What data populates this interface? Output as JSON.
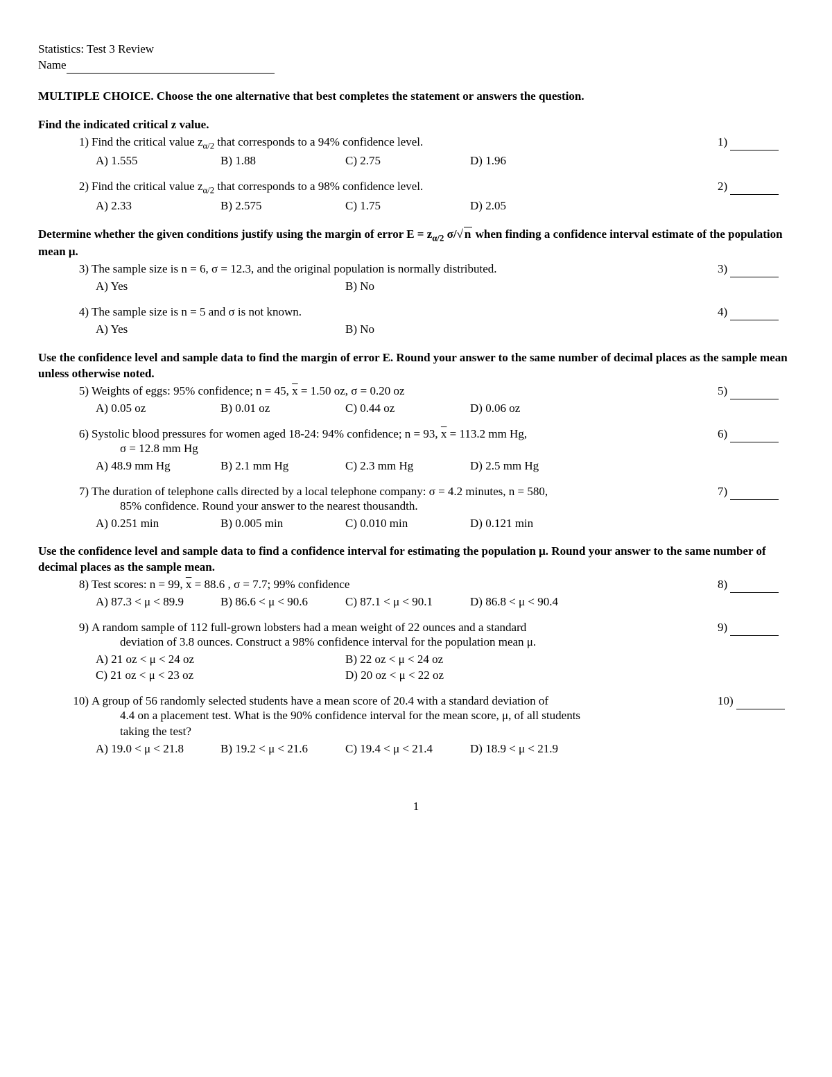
{
  "header": {
    "title": "Statistics:  Test 3 Review",
    "name_label": "Name"
  },
  "instructions": "MULTIPLE CHOICE.  Choose the one alternative that best completes the statement or answers the question.",
  "sections": [
    {
      "head": "Find the indicated critical z value.",
      "questions": [
        {
          "num": "1)",
          "text_pre": "Find the critical value z",
          "text_sub": "α/2",
          "text_post": " that corresponds to a 94% confidence level.",
          "ans_num": "1)",
          "choices": {
            "A": "1.555",
            "B": "1.88",
            "C": "2.75",
            "D": "1.96"
          }
        },
        {
          "num": "2)",
          "text_pre": "Find the critical value z",
          "text_sub": "α/2",
          "text_post": " that corresponds to a 98% confidence level.",
          "ans_num": "2)",
          "choices": {
            "A": "2.33",
            "B": "2.575",
            "C": "1.75",
            "D": "2.05"
          }
        }
      ]
    },
    {
      "head_parts": {
        "pre": "Determine whether the given conditions justify using the margin of error E = z",
        "sub": "α/2",
        "mid": " σ/",
        "sqrt": "n",
        "post": " when finding a confidence interval estimate of the population mean μ."
      },
      "questions": [
        {
          "num": "3)",
          "text": "The sample size is n = 6, σ = 12.3, and the original population is normally distributed.",
          "ans_num": "3)",
          "choices_yn": {
            "A": "Yes",
            "B": "No"
          }
        },
        {
          "num": "4)",
          "text": "The sample size is n = 5 and σ is not known.",
          "ans_num": "4)",
          "choices_yn": {
            "A": "Yes",
            "B": "No"
          }
        }
      ]
    },
    {
      "head": "Use the confidence level and sample data to find the margin of error E. Round your answer to the same number of decimal places as the sample mean unless otherwise noted.",
      "questions": [
        {
          "num": "5)",
          "text_parts": {
            "pre": "Weights of eggs: 95% confidence; n = 45, ",
            "xbar": "x",
            "post": " = 1.50 oz, σ = 0.20 oz"
          },
          "ans_num": "5)",
          "choices": {
            "A": "0.05 oz",
            "B": "0.01 oz",
            "C": "0.44 oz",
            "D": "0.06 oz"
          }
        },
        {
          "num": "6)",
          "text_parts": {
            "pre": "Systolic blood pressures for women aged 18-24: 94% confidence; n = 93, ",
            "xbar": "x",
            "post": " = 113.2 mm Hg,"
          },
          "cont": "σ = 12.8 mm Hg",
          "ans_num": "6)",
          "choices": {
            "A": "48.9 mm Hg",
            "B": "2.1 mm Hg",
            "C": "2.3 mm Hg",
            "D": "2.5 mm Hg"
          }
        },
        {
          "num": "7)",
          "text": "The duration of telephone calls directed by a local telephone company: σ = 4.2 minutes, n = 580,",
          "cont": "85% confidence. Round your answer to the nearest thousandth.",
          "ans_num": "7)",
          "choices": {
            "A": "0.251 min",
            "B": "0.005 min",
            "C": "0.010 min",
            "D": "0.121 min"
          }
        }
      ]
    },
    {
      "head": "Use the confidence level and sample data to find a confidence interval for estimating the population μ. Round your answer to the same number of decimal places as the sample mean.",
      "questions": [
        {
          "num": "8)",
          "text_parts": {
            "pre": "Test scores: n = 99, ",
            "xbar": "x",
            "post": " = 88.6 , σ = 7.7; 99% confidence"
          },
          "ans_num": "8)",
          "choices": {
            "A": "87.3 < μ < 89.9",
            "B": "86.6 < μ < 90.6",
            "C": "87.1 < μ < 90.1",
            "D": "86.8 < μ < 90.4"
          }
        },
        {
          "num": "9)",
          "text": "A random sample of 112 full-grown lobsters had a mean weight of 22 ounces and a standard",
          "cont": "deviation of 3.8 ounces. Construct a 98% confidence interval for the population mean μ.",
          "ans_num": "9)",
          "choices_2x2": {
            "A": "21 oz < μ < 24 oz",
            "B": "22 oz < μ < 24 oz",
            "C": "21 oz < μ < 23 oz",
            "D": "20 oz < μ < 22 oz"
          }
        },
        {
          "num": "10)",
          "text": "A group of 56 randomly selected students have a mean score of 20.4 with a standard deviation of",
          "cont": "4.4 on a placement test. What is the 90% confidence interval for the mean score, μ, of all students",
          "cont2": "taking the test?",
          "ans_num": "10)",
          "choices": {
            "A": "19.0 < μ < 21.8",
            "B": "19.2 < μ < 21.6",
            "C": "19.4 < μ < 21.4",
            "D": "18.9 < μ < 21.9"
          }
        }
      ]
    }
  ],
  "page_num": "1"
}
